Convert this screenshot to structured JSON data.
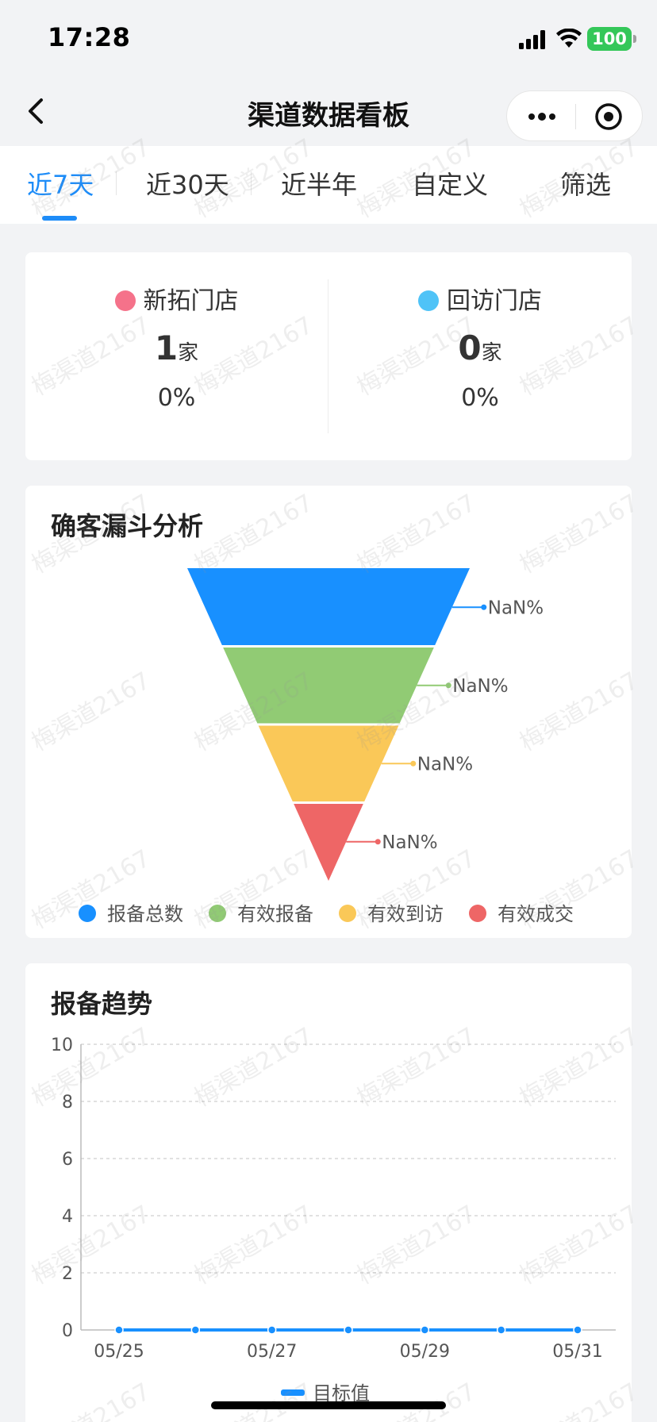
{
  "status_bar": {
    "time": "17:28",
    "battery": "100"
  },
  "nav": {
    "title": "渠道数据看板"
  },
  "tabs": [
    {
      "label": "近7天",
      "active": true
    },
    {
      "label": "近30天",
      "active": false
    },
    {
      "label": "近半年",
      "active": false
    },
    {
      "label": "自定义",
      "active": false
    },
    {
      "label": "筛选",
      "active": false
    }
  ],
  "stats": {
    "new_store": {
      "label": "新拓门店",
      "value": "1",
      "unit": "家",
      "percent": "0%",
      "color": "#f5728a"
    },
    "revisit_store": {
      "label": "回访门店",
      "value": "0",
      "unit": "家",
      "percent": "0%",
      "color": "#4fc3f7"
    }
  },
  "funnel": {
    "title": "确客漏斗分析",
    "chart_data": {
      "type": "funnel",
      "stages": [
        {
          "name": "报备总数",
          "label": "NaN%",
          "color": "#1890ff"
        },
        {
          "name": "有效报备",
          "label": "NaN%",
          "color": "#91cb74"
        },
        {
          "name": "有效到访",
          "label": "NaN%",
          "color": "#fac858"
        },
        {
          "name": "有效成交",
          "label": "NaN%",
          "color": "#ee6666"
        }
      ],
      "legend_position": "bottom"
    }
  },
  "trend": {
    "title": "报备趋势",
    "chart_data": {
      "type": "line",
      "x": [
        "05/25",
        "05/26",
        "05/27",
        "05/28",
        "05/29",
        "05/30",
        "05/31"
      ],
      "x_tick_labels": [
        "05/25",
        "05/27",
        "05/29",
        "05/31"
      ],
      "series": [
        {
          "name": "目标值",
          "values": [
            0,
            0,
            0,
            0,
            0,
            0,
            0
          ],
          "color": "#1890ff"
        }
      ],
      "ylim": [
        0,
        10
      ],
      "y_ticks": [
        0,
        2,
        4,
        6,
        8,
        10
      ],
      "grid": true,
      "legend_position": "bottom"
    }
  },
  "watermark": {
    "text": "梅渠道2167"
  }
}
